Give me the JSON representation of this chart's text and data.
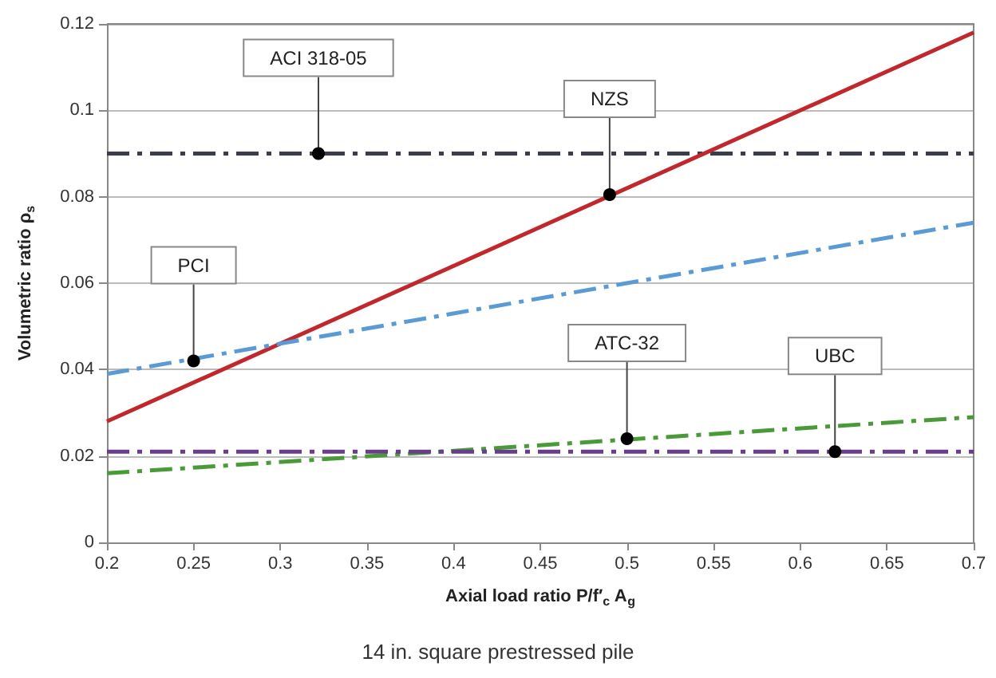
{
  "chart_data": {
    "type": "line",
    "xlabel": "Axial load ratio P/f′$_{c}$ A$_{g}$",
    "ylabel": "Volumetric ratio ρ$_{s}$",
    "x": [
      0.2,
      0.7
    ],
    "series": [
      {
        "color": "#3a3d4c",
        "values": [
          0.09,
          0.09
        ],
        "line_style": "dashed"
      },
      {
        "color": "#c0282d",
        "values": [
          0.028,
          0.118
        ],
        "line_style": "solid"
      },
      {
        "color": "#5b9bd5",
        "values": [
          0.039,
          0.074
        ],
        "line_style": "dashed"
      },
      {
        "color": "#4a9a3a",
        "values": [
          0.016,
          0.029
        ],
        "line_style": "dashed"
      },
      {
        "color": "#6a3d8a",
        "values": [
          0.021,
          0.021
        ],
        "line_style": "dashed"
      }
    ],
    "xlim": [
      0.2,
      0.7
    ],
    "xticks": [
      0.2,
      0.25,
      0.3,
      0.35,
      0.4,
      0.45,
      0.5,
      0.55,
      0.6,
      0.65,
      0.7
    ],
    "ylim": [
      0,
      0.12
    ],
    "yticks": [
      0,
      0.02,
      0.04,
      0.06,
      0.08,
      0.1,
      0.12
    ],
    "grid": "y",
    "marker": "none",
    "annotations": [
      {
        "text": "ACI 318-05",
        "x": 0.322,
        "y": 0.09
      },
      {
        "text": "NZS",
        "x": 0.49,
        "y": 0.0805
      },
      {
        "text": "PCI",
        "x": 0.25,
        "y": 0.042
      },
      {
        "text": "ATC-32",
        "x": 0.5,
        "y": 0.024
      },
      {
        "text": "UBC",
        "x": 0.62,
        "y": 0.021
      },
      "14 in. square prestressed pile"
    ]
  }
}
